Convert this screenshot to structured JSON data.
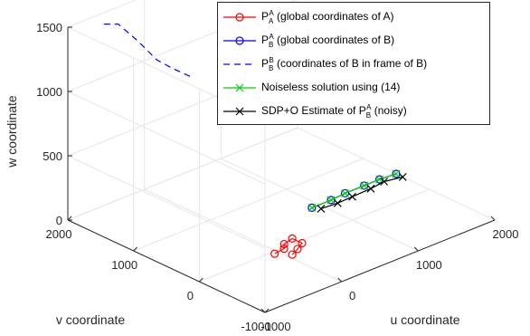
{
  "chart_data": {
    "type": "scatter",
    "title": "",
    "xlabel": "u coordinate",
    "ylabel": "v coordinate",
    "zlabel": "w coordinate",
    "xlim": [
      -1000,
      2000
    ],
    "ylim": [
      -1000,
      2000
    ],
    "zlim": [
      0,
      1500
    ],
    "x_ticks": [
      "-1000",
      "0",
      "1000",
      "2000"
    ],
    "y_ticks": [
      "-1000",
      "0",
      "1000",
      "2000"
    ],
    "z_ticks": [
      "0",
      "500",
      "1000",
      "1500"
    ],
    "grid": true,
    "legend_position": "top-right",
    "series": [
      {
        "symbol": "P",
        "sub": "A",
        "sup": "A",
        "label_rest": " (global coordinates of A)",
        "color": "#ff0000",
        "marker": "circle",
        "linestyle": "solid",
        "points": [
          [
            -50,
            -40,
            0
          ],
          [
            90,
            -20,
            0
          ],
          [
            160,
            60,
            0
          ],
          [
            300,
            100,
            0
          ],
          [
            300,
            -50,
            0
          ],
          [
            180,
            -120,
            0
          ],
          [
            60,
            -180,
            0
          ]
        ]
      },
      {
        "symbol": "P",
        "sub": "B",
        "sup": "A",
        "label_rest": " (global coordinates of B)",
        "color": "#0000ff",
        "marker": "circle",
        "linestyle": "solid",
        "points": [
          [
            900,
            500,
            0
          ],
          [
            1150,
            500,
            0
          ],
          [
            1350,
            520,
            0
          ],
          [
            1600,
            520,
            0
          ],
          [
            1800,
            520,
            0
          ],
          [
            2000,
            500,
            0
          ]
        ]
      },
      {
        "symbol": "P",
        "sub": "B",
        "sup": "B",
        "label_rest": " (coordinates of B in frame of B)",
        "color": "#0000ff",
        "marker": "none",
        "linestyle": "dashed",
        "points": [
          [
            -700,
            1800,
            1500
          ],
          [
            -600,
            1700,
            1500
          ],
          [
            -520,
            1500,
            1400
          ],
          [
            -480,
            1250,
            1300
          ],
          [
            -400,
            1100,
            1250
          ],
          [
            -300,
            900,
            1200
          ]
        ]
      },
      {
        "symbol": "",
        "sub": "",
        "sup": "",
        "label_rest": "Noiseless solution using (14)",
        "color": "#00cc00",
        "marker": "x",
        "linestyle": "solid",
        "points": [
          [
            900,
            500,
            0
          ],
          [
            1150,
            500,
            0
          ],
          [
            1350,
            520,
            0
          ],
          [
            1600,
            520,
            0
          ],
          [
            1800,
            520,
            0
          ],
          [
            2000,
            500,
            0
          ]
        ]
      },
      {
        "symbol": "P",
        "sub": "B",
        "sup": "A",
        "label_rest": " (noisy)",
        "label_prefix": "SDP+O Estimate of ",
        "color": "#000000",
        "marker": "x",
        "linestyle": "solid",
        "points": [
          [
            950,
            420,
            0
          ],
          [
            1150,
            400,
            0
          ],
          [
            1350,
            410,
            0
          ],
          [
            1600,
            420,
            0
          ],
          [
            1800,
            450,
            0
          ],
          [
            2000,
            400,
            0
          ]
        ]
      }
    ]
  }
}
